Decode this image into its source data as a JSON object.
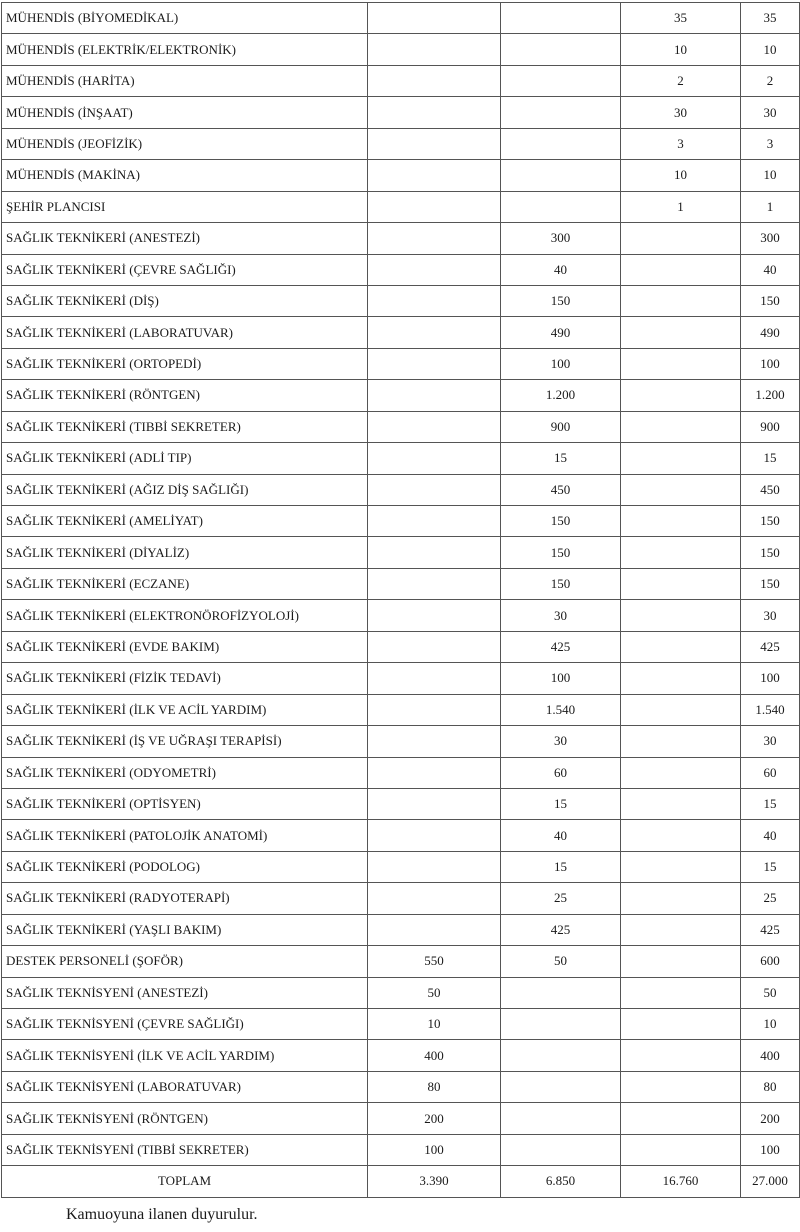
{
  "rows": [
    [
      "MÜHENDİS (BİYOMEDİKAL)",
      "",
      "",
      "35",
      "35"
    ],
    [
      "MÜHENDİS (ELEKTRİK/ELEKTRONİK)",
      "",
      "",
      "10",
      "10"
    ],
    [
      "MÜHENDİS (HARİTA)",
      "",
      "",
      "2",
      "2"
    ],
    [
      "MÜHENDİS (İNŞAAT)",
      "",
      "",
      "30",
      "30"
    ],
    [
      "MÜHENDİS (JEOFİZİK)",
      "",
      "",
      "3",
      "3"
    ],
    [
      "MÜHENDİS (MAKİNA)",
      "",
      "",
      "10",
      "10"
    ],
    [
      "ŞEHİR PLANCISI",
      "",
      "",
      "1",
      "1"
    ],
    [
      "SAĞLIK TEKNİKERİ (ANESTEZİ)",
      "",
      "300",
      "",
      "300"
    ],
    [
      "SAĞLIK TEKNİKERİ (ÇEVRE SAĞLIĞI)",
      "",
      "40",
      "",
      "40"
    ],
    [
      "SAĞLIK TEKNİKERİ (DİŞ)",
      "",
      "150",
      "",
      "150"
    ],
    [
      "SAĞLIK TEKNİKERİ (LABORATUVAR)",
      "",
      "490",
      "",
      "490"
    ],
    [
      "SAĞLIK TEKNİKERİ (ORTOPEDİ)",
      "",
      "100",
      "",
      "100"
    ],
    [
      "SAĞLIK TEKNİKERİ (RÖNTGEN)",
      "",
      "1.200",
      "",
      "1.200"
    ],
    [
      "SAĞLIK TEKNİKERİ (TIBBİ SEKRETER)",
      "",
      "900",
      "",
      "900"
    ],
    [
      "SAĞLIK TEKNİKERİ (ADLİ TIP)",
      "",
      "15",
      "",
      "15"
    ],
    [
      "SAĞLIK TEKNİKERİ (AĞIZ DİŞ SAĞLIĞI)",
      "",
      "450",
      "",
      "450"
    ],
    [
      "SAĞLIK TEKNİKERİ (AMELİYAT)",
      "",
      "150",
      "",
      "150"
    ],
    [
      "SAĞLIK TEKNİKERİ (DİYALİZ)",
      "",
      "150",
      "",
      "150"
    ],
    [
      "SAĞLIK TEKNİKERİ (ECZANE)",
      "",
      "150",
      "",
      "150"
    ],
    [
      "SAĞLIK TEKNİKERİ (ELEKTRONÖROFİZYOLOJİ)",
      "",
      "30",
      "",
      "30"
    ],
    [
      "SAĞLIK TEKNİKERİ (EVDE BAKIM)",
      "",
      "425",
      "",
      "425"
    ],
    [
      "SAĞLIK TEKNİKERİ (FİZİK TEDAVİ)",
      "",
      "100",
      "",
      "100"
    ],
    [
      "SAĞLIK TEKNİKERİ (İLK VE ACİL YARDIM)",
      "",
      "1.540",
      "",
      "1.540"
    ],
    [
      "SAĞLIK TEKNİKERİ (İŞ VE UĞRAŞI TERAPİSİ)",
      "",
      "30",
      "",
      "30"
    ],
    [
      "SAĞLIK TEKNİKERİ (ODYOMETRİ)",
      "",
      "60",
      "",
      "60"
    ],
    [
      "SAĞLIK TEKNİKERİ (OPTİSYEN)",
      "",
      "15",
      "",
      "15"
    ],
    [
      "SAĞLIK TEKNİKERİ (PATOLOJİK ANATOMİ)",
      "",
      "40",
      "",
      "40"
    ],
    [
      "SAĞLIK TEKNİKERİ (PODOLOG)",
      "",
      "15",
      "",
      "15"
    ],
    [
      "SAĞLIK TEKNİKERİ (RADYOTERAPİ)",
      "",
      "25",
      "",
      "25"
    ],
    [
      "SAĞLIK TEKNİKERİ (YAŞLI BAKIM)",
      "",
      "425",
      "",
      "425"
    ],
    [
      "DESTEK PERSONELİ (ŞOFÖR)",
      "550",
      "50",
      "",
      "600"
    ],
    [
      "SAĞLIK TEKNİSYENİ (ANESTEZİ)",
      "50",
      "",
      "",
      "50"
    ],
    [
      "SAĞLIK TEKNİSYENİ (ÇEVRE SAĞLIĞI)",
      "10",
      "",
      "",
      "10"
    ],
    [
      "SAĞLIK TEKNİSYENİ (İLK VE ACİL YARDIM)",
      "400",
      "",
      "",
      "400"
    ],
    [
      "SAĞLIK TEKNİSYENİ (LABORATUVAR)",
      "80",
      "",
      "",
      "80"
    ],
    [
      "SAĞLIK TEKNİSYENİ (RÖNTGEN)",
      "200",
      "",
      "",
      "200"
    ],
    [
      "SAĞLIK TEKNİSYENİ (TIBBİ SEKRETER)",
      "100",
      "",
      "",
      "100"
    ]
  ],
  "total": [
    "TOPLAM",
    "3.390",
    "6.850",
    "16.760",
    "27.000"
  ],
  "footer": "Kamuoyuna ilanen duyurulur."
}
